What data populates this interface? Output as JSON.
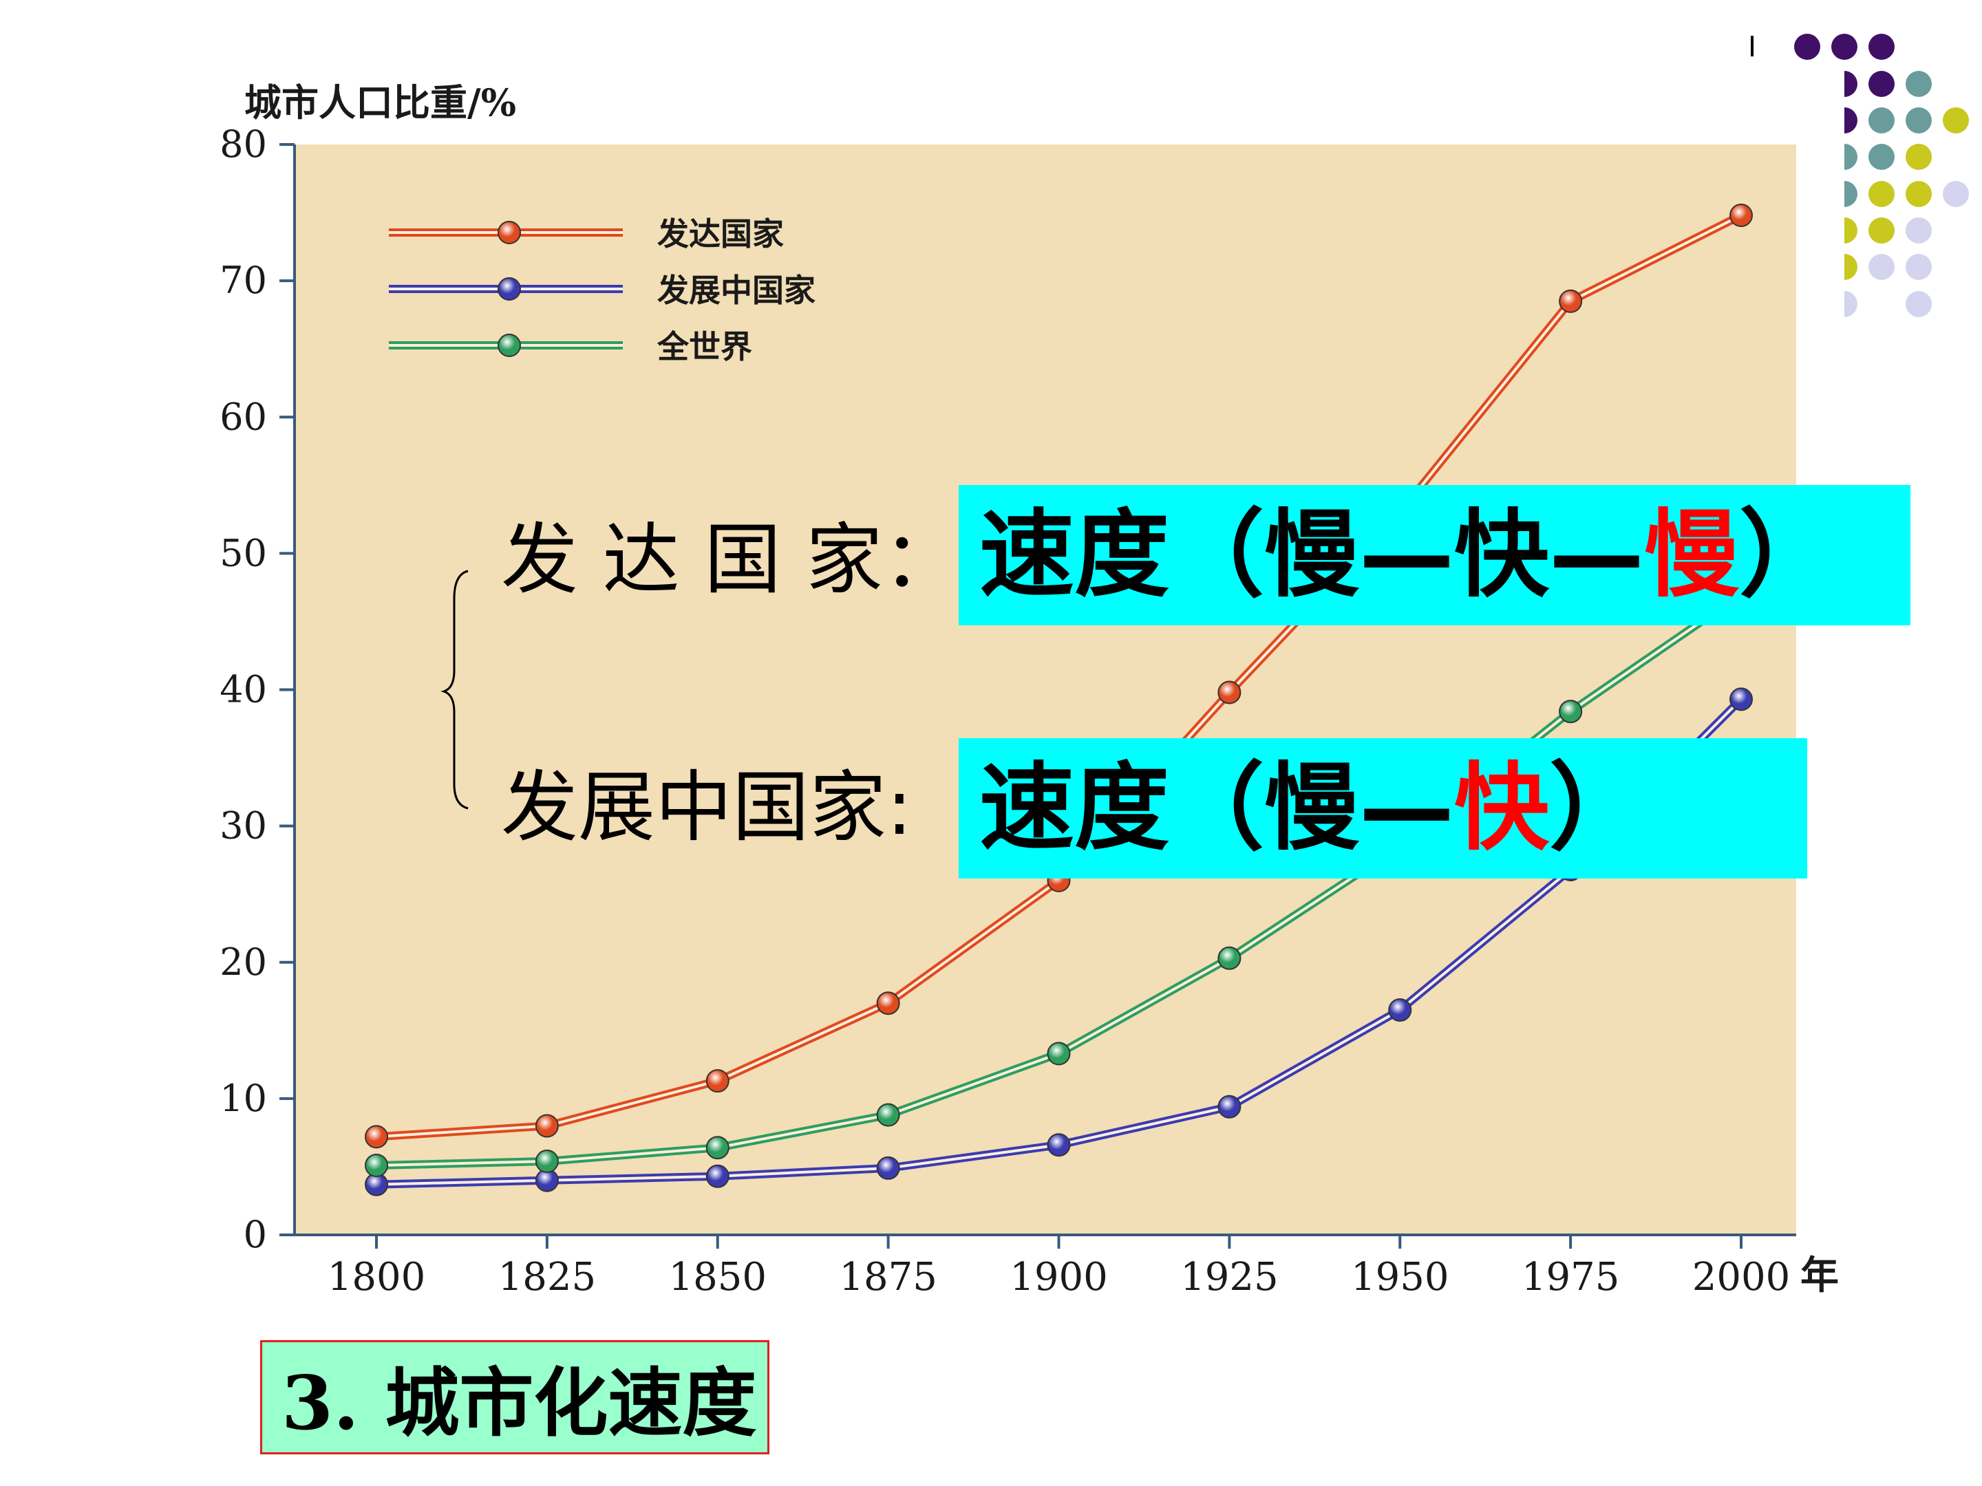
{
  "chart_data": {
    "type": "line",
    "ylabel": "城市人口比重/%",
    "xlabel": "年",
    "x": [
      1800,
      1825,
      1850,
      1875,
      1900,
      1925,
      1950,
      1975,
      2000
    ],
    "xlim": [
      1800,
      2000
    ],
    "ylim": [
      0,
      80
    ],
    "yticks": [
      0,
      10,
      20,
      30,
      40,
      50,
      60,
      70,
      80
    ],
    "legend_position": "top-left",
    "series": [
      {
        "name": "发达国家",
        "color": "#e04a1e",
        "values": [
          7.2,
          8.0,
          11.3,
          17.0,
          26.0,
          39.8,
          53.0,
          68.5,
          74.8
        ]
      },
      {
        "name": "发展中国家",
        "color": "#3b3bb0",
        "values": [
          3.7,
          4.0,
          4.3,
          4.9,
          6.6,
          9.4,
          16.5,
          26.8,
          39.3
        ]
      },
      {
        "name": "全世界",
        "color": "#2e9e5e",
        "values": [
          5.1,
          5.4,
          6.4,
          8.8,
          13.3,
          20.3,
          28.5,
          38.4,
          47.0
        ]
      }
    ]
  },
  "annotations": {
    "developed_label": "发 达 国 家：",
    "developed_speed": [
      "速度（慢—快—",
      "慢",
      "）"
    ],
    "developing_label": "发展中国家:",
    "developing_speed": [
      "速度（慢—",
      "快",
      "）"
    ]
  },
  "footer": {
    "title": "3. 城市化速度"
  },
  "decor": {
    "dot_colors": [
      "#3f1066",
      "#6a9c9c",
      "#c8c81e",
      "#d4d4ee"
    ]
  }
}
